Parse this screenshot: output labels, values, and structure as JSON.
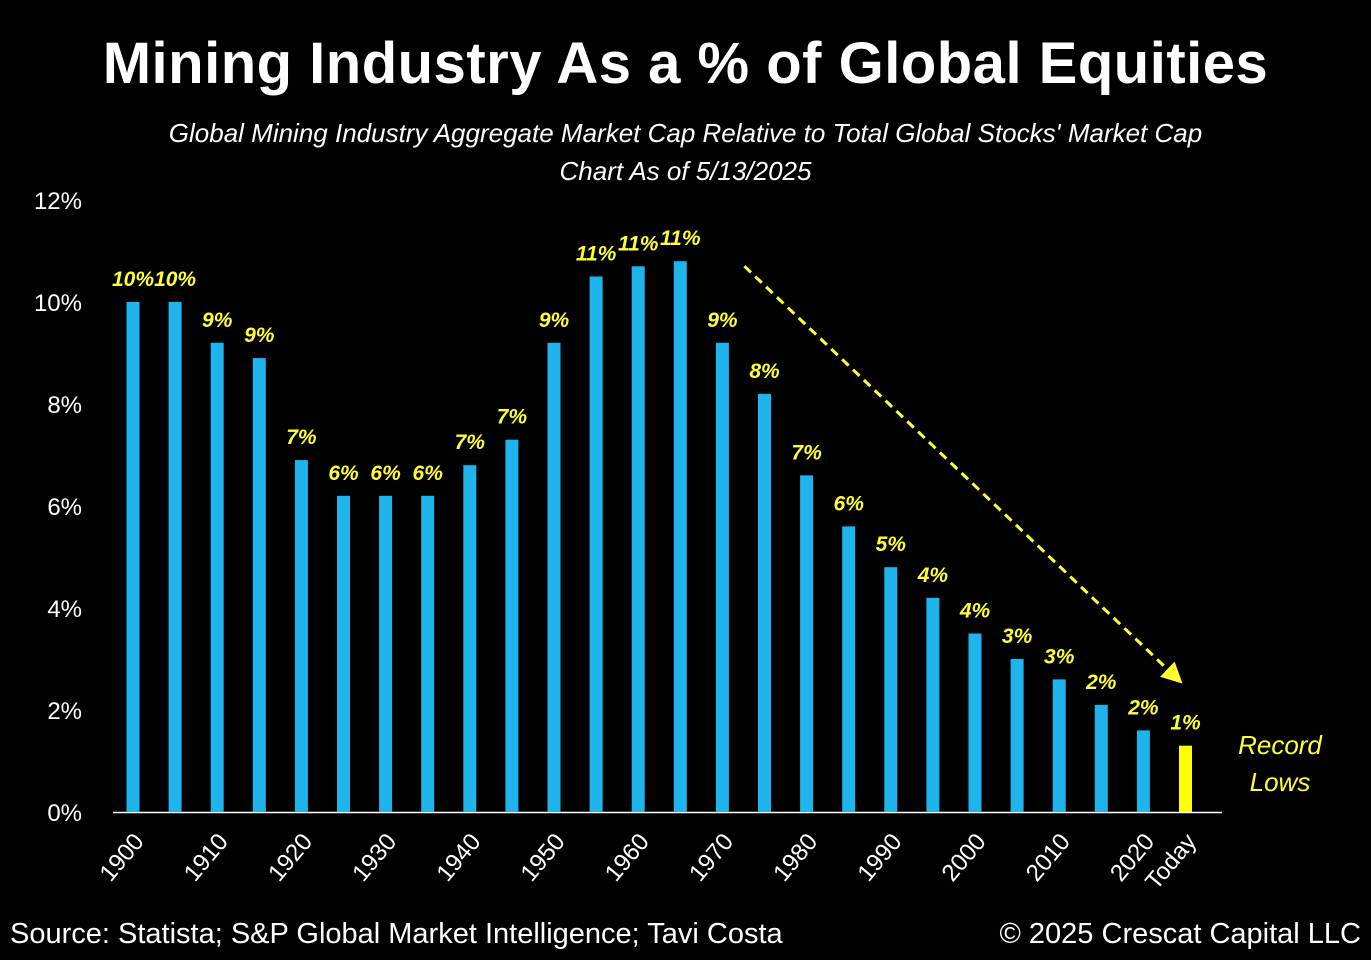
{
  "header": {
    "title": "Mining Industry As a % of Global Equities",
    "subtitle_line1": "Global Mining Industry Aggregate Market Cap Relative to Total Global Stocks' Market Cap",
    "subtitle_line2": "Chart As of 5/13/2025"
  },
  "footer": {
    "source": "Source: Statista; S&P Global Market Intelligence; Tavi Costa",
    "copyright": "© 2025 Crescat Capital LLC"
  },
  "colors": {
    "background": "#000000",
    "bar": "#1fb4ec",
    "highlight_bar": "#ffff00",
    "label": "#ffff33",
    "text": "#ffffff"
  },
  "chart_data": {
    "type": "bar",
    "title": "Mining Industry As a % of Global Equities",
    "ylim": [
      0,
      12
    ],
    "yticks": [
      0,
      2,
      4,
      6,
      8,
      10,
      12
    ],
    "ytick_labels": [
      "0%",
      "2%",
      "4%",
      "6%",
      "8%",
      "10%",
      "12%"
    ],
    "xtick_labels": [
      "1900",
      "1910",
      "1920",
      "1930",
      "1940",
      "1950",
      "1960",
      "1970",
      "1980",
      "1990",
      "2000",
      "2010",
      "2020",
      "Today"
    ],
    "categories": [
      "1900",
      "1905",
      "1910",
      "1915",
      "1920",
      "1925",
      "1930",
      "1935",
      "1940",
      "1945",
      "1950",
      "1955",
      "1960",
      "1965",
      "1970",
      "1975",
      "1980",
      "1985",
      "1990",
      "1995",
      "2000",
      "2005",
      "2010",
      "2015",
      "2020",
      "Today"
    ],
    "values": [
      10.0,
      10.0,
      9.2,
      8.9,
      6.9,
      6.2,
      6.2,
      6.2,
      6.8,
      7.3,
      9.2,
      10.5,
      10.7,
      10.8,
      9.2,
      8.2,
      6.6,
      5.6,
      4.8,
      4.2,
      3.5,
      3.0,
      2.6,
      2.1,
      1.6,
      1.3
    ],
    "data_labels": [
      "10%",
      "10%",
      "9%",
      "9%",
      "7%",
      "6%",
      "6%",
      "6%",
      "7%",
      "7%",
      "9%",
      "11%",
      "11%",
      "11%",
      "9%",
      "8%",
      "7%",
      "6%",
      "5%",
      "4%",
      "4%",
      "3%",
      "3%",
      "2%",
      "2%",
      "1%"
    ],
    "highlight_index": 25,
    "annotation": {
      "lines": [
        "Record",
        "Lows"
      ],
      "arrow": "dashed yellow arrow from 1965 peak down to Today bar"
    },
    "grid": false,
    "legend": "none"
  }
}
